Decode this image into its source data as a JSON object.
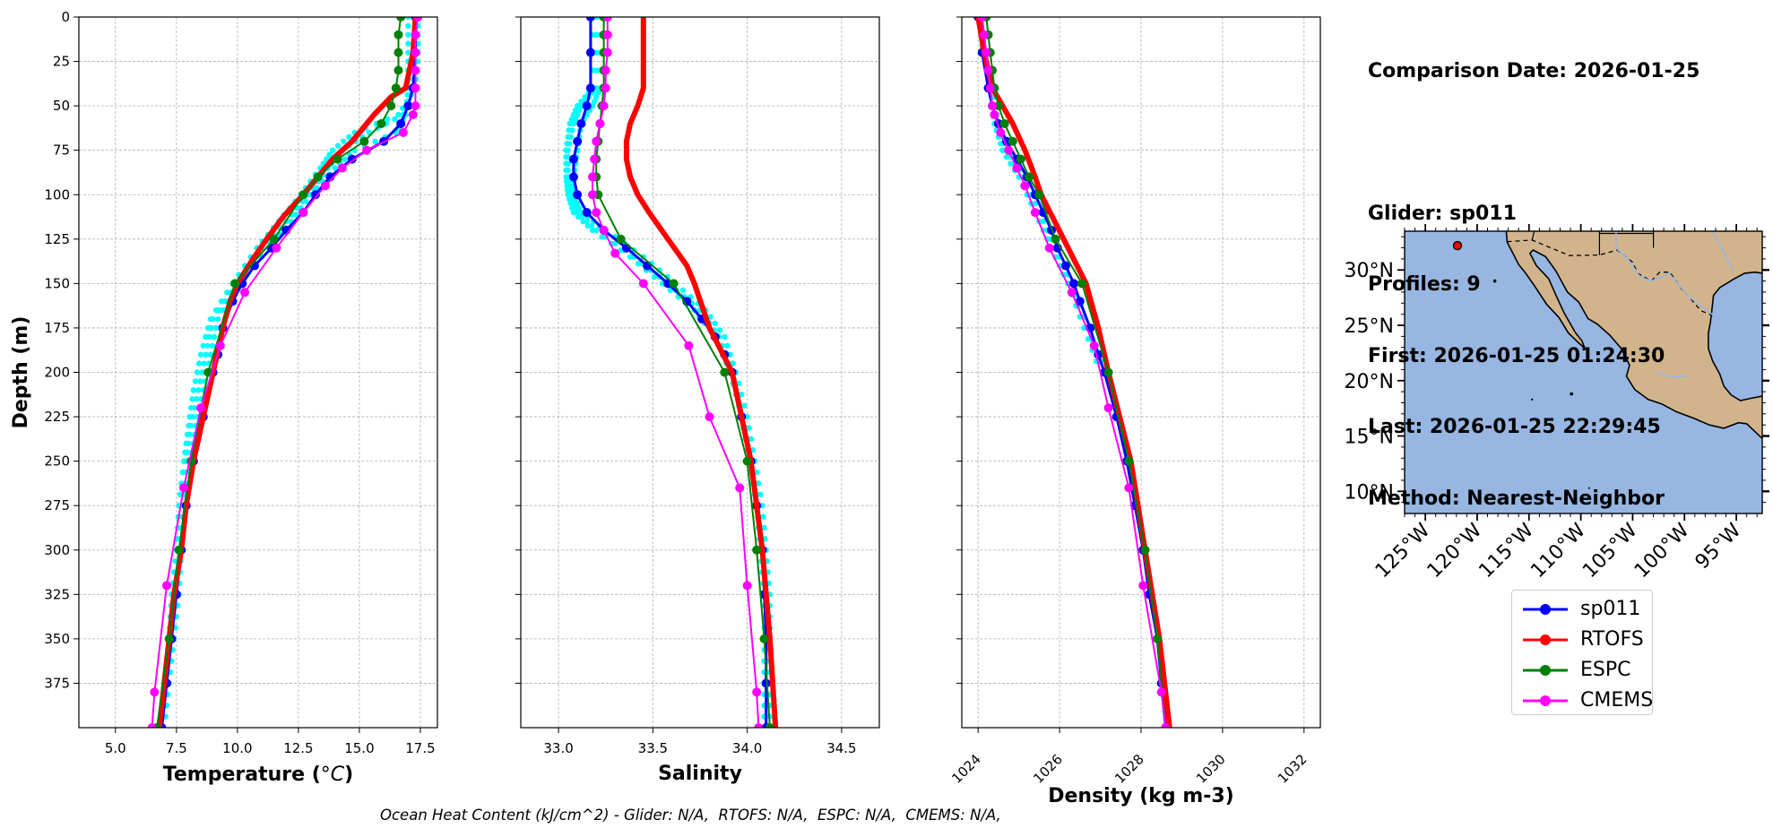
{
  "info": {
    "date_line": "Comparison Date: 2026-01-25",
    "glider_line": "Glider: sp011",
    "profiles_line": "Profiles: 9",
    "first_line": "First: 2026-01-25 01:24:30",
    "last_line": "Last: 2026-01-25 22:29:45",
    "method_line": "Method: Nearest-Neighbor"
  },
  "footer": "Ocean Heat Content (kJ/cm^2) - Glider: N/A,  RTOFS: N/A,  ESPC: N/A,  CMEMS: N/A,",
  "legend": [
    {
      "name": "sp011",
      "color": "#0000ff"
    },
    {
      "name": "RTOFS",
      "color": "#ff0000"
    },
    {
      "name": "ESPC",
      "color": "#008000"
    },
    {
      "name": "CMEMS",
      "color": "#ff00ff"
    }
  ],
  "colors": {
    "glider_profiles": "#00ffff",
    "land": "#d2b48c",
    "ocean": "#97b6e1",
    "rivers": "#97b6e1"
  },
  "chart_data": [
    {
      "type": "line",
      "id": "temperature",
      "xlabel_text": "Temperature (",
      "xlabel_unit": "°C",
      "ylabel": "Depth (m)",
      "xlim": [
        3.5,
        18.2
      ],
      "ylim": [
        400,
        0
      ],
      "xticks": [
        5.0,
        7.5,
        10.0,
        12.5,
        15.0,
        17.5
      ],
      "xtick_labels": [
        "5.0",
        "7.5",
        "10.0",
        "12.5",
        "15.0",
        "17.5"
      ],
      "yticks": [
        0,
        25,
        50,
        75,
        100,
        125,
        150,
        175,
        200,
        225,
        250,
        275,
        300,
        325,
        350,
        375
      ],
      "grid": true,
      "raw_profiles_depth": [
        0,
        20,
        40,
        55,
        65,
        75,
        85,
        100,
        115,
        130,
        150,
        170,
        190,
        210,
        230,
        250,
        275,
        300,
        325,
        350,
        375,
        400
      ],
      "raw_profiles": [
        [
          17.0,
          17.0,
          17.0,
          16.9,
          16.5,
          14.8,
          14.0,
          13.0,
          12.2,
          11.3,
          10.1,
          9.2,
          8.9,
          8.6,
          8.3,
          8.1,
          7.9,
          7.7,
          7.6,
          7.4,
          7.2,
          7.0
        ],
        [
          17.3,
          17.3,
          17.2,
          16.8,
          15.4,
          14.3,
          13.7,
          12.9,
          12.0,
          11.0,
          10.0,
          9.0,
          8.7,
          8.4,
          8.1,
          7.9,
          7.8,
          7.6,
          7.4,
          7.3,
          7.1,
          7.0
        ],
        [
          17.4,
          17.4,
          17.3,
          16.6,
          14.8,
          13.9,
          13.4,
          12.6,
          11.7,
          10.8,
          9.8,
          8.9,
          8.5,
          8.2,
          8.0,
          7.8,
          7.6,
          7.5,
          7.3,
          7.2,
          7.0,
          6.9
        ]
      ],
      "series": [
        {
          "name": "sp011",
          "color": "#0000ff",
          "lw": 3,
          "ms": 5,
          "depth": [
            0,
            20,
            40,
            50,
            60,
            70,
            80,
            90,
            100,
            110,
            120,
            130,
            140,
            150,
            160,
            175,
            190,
            200,
            225,
            250,
            275,
            300,
            325,
            350,
            375,
            400
          ],
          "x": [
            17.3,
            17.3,
            17.2,
            17.0,
            16.7,
            16.0,
            14.7,
            13.8,
            13.2,
            12.7,
            12.0,
            11.4,
            10.7,
            10.2,
            9.8,
            9.4,
            9.2,
            9.0,
            8.6,
            8.2,
            7.9,
            7.7,
            7.5,
            7.3,
            7.1,
            6.9
          ]
        },
        {
          "name": "RTOFS",
          "color": "#ff0000",
          "lw": 6,
          "ms": 0,
          "depth": [
            0,
            20,
            40,
            45,
            55,
            70,
            80,
            90,
            100,
            112,
            125,
            137,
            150,
            160,
            175,
            200,
            225,
            250,
            275,
            300,
            325,
            350,
            375,
            400
          ],
          "x": [
            17.3,
            17.2,
            16.9,
            16.3,
            15.6,
            14.7,
            13.9,
            13.3,
            12.7,
            11.9,
            11.2,
            10.6,
            10.0,
            9.7,
            9.4,
            9.0,
            8.6,
            8.2,
            7.9,
            7.7,
            7.4,
            7.2,
            7.0,
            6.8
          ]
        },
        {
          "name": "ESPC",
          "color": "#008000",
          "lw": 2,
          "ms": 5,
          "depth": [
            0,
            10,
            20,
            30,
            40,
            50,
            60,
            70,
            80,
            90,
            100,
            125,
            150,
            200,
            250,
            300,
            350,
            400
          ],
          "x": [
            16.7,
            16.6,
            16.6,
            16.6,
            16.5,
            16.3,
            15.9,
            15.2,
            14.1,
            13.3,
            12.7,
            11.5,
            9.9,
            8.8,
            8.1,
            7.6,
            7.2,
            6.7
          ]
        },
        {
          "name": "CMEMS",
          "color": "#ff00ff",
          "lw": 2,
          "ms": 5,
          "depth": [
            0,
            10,
            20,
            30,
            40,
            50,
            55,
            65,
            75,
            85,
            95,
            110,
            130,
            155,
            185,
            220,
            265,
            320,
            380,
            400
          ],
          "x": [
            17.4,
            17.3,
            17.3,
            17.3,
            17.3,
            17.3,
            17.2,
            16.8,
            15.3,
            14.3,
            13.6,
            12.7,
            11.6,
            10.3,
            9.3,
            8.5,
            7.8,
            7.1,
            6.6,
            6.5
          ]
        }
      ]
    },
    {
      "type": "line",
      "id": "salinity",
      "xlabel": "Salinity",
      "xlim": [
        32.8,
        34.7
      ],
      "ylim": [
        400,
        0
      ],
      "xticks": [
        33.0,
        33.5,
        34.0,
        34.5
      ],
      "xtick_labels": [
        "33.0",
        "33.5",
        "34.0",
        "34.5"
      ],
      "yticks": [
        0,
        25,
        50,
        75,
        100,
        125,
        150,
        175,
        200,
        225,
        250,
        275,
        300,
        325,
        350,
        375
      ],
      "grid": true,
      "raw_profiles_depth": [
        0,
        40,
        50,
        60,
        75,
        90,
        100,
        110,
        120,
        135,
        150,
        165,
        180,
        200,
        225,
        250,
        275,
        300,
        325,
        350,
        375,
        400
      ],
      "raw_profiles": [
        [
          33.2,
          33.2,
          33.12,
          33.08,
          33.05,
          33.05,
          33.06,
          33.1,
          33.2,
          33.4,
          33.58,
          33.75,
          33.85,
          33.92,
          33.98,
          34.02,
          34.06,
          34.08,
          34.1,
          34.1,
          34.1,
          34.1
        ],
        [
          33.22,
          33.22,
          33.18,
          33.12,
          33.1,
          33.08,
          33.08,
          33.12,
          33.25,
          33.45,
          33.62,
          33.78,
          33.88,
          33.94,
          34.0,
          34.04,
          34.08,
          34.1,
          34.12,
          34.12,
          34.12,
          34.12
        ],
        [
          33.18,
          33.18,
          33.1,
          33.06,
          33.04,
          33.04,
          33.05,
          33.08,
          33.18,
          33.38,
          33.55,
          33.72,
          33.83,
          33.91,
          33.97,
          34.01,
          34.05,
          34.07,
          34.09,
          34.09,
          34.09,
          34.09
        ]
      ],
      "series": [
        {
          "name": "sp011",
          "color": "#0000ff",
          "lw": 3,
          "ms": 5,
          "depth": [
            0,
            20,
            40,
            50,
            60,
            70,
            80,
            90,
            100,
            110,
            120,
            130,
            140,
            150,
            160,
            170,
            180,
            190,
            200,
            225,
            250,
            275,
            300,
            325,
            350,
            375,
            400
          ],
          "x": [
            33.17,
            33.17,
            33.17,
            33.15,
            33.12,
            33.1,
            33.08,
            33.08,
            33.1,
            33.15,
            33.24,
            33.36,
            33.47,
            33.58,
            33.68,
            33.76,
            33.83,
            33.88,
            33.92,
            33.97,
            34.02,
            34.05,
            34.08,
            34.09,
            34.1,
            34.1,
            34.1
          ]
        },
        {
          "name": "RTOFS",
          "color": "#ff0000",
          "lw": 6,
          "ms": 0,
          "depth": [
            0,
            20,
            40,
            50,
            60,
            70,
            80,
            90,
            100,
            110,
            125,
            140,
            150,
            175,
            200,
            250,
            300,
            350,
            400
          ],
          "x": [
            33.45,
            33.45,
            33.45,
            33.42,
            33.38,
            33.36,
            33.36,
            33.38,
            33.42,
            33.48,
            33.58,
            33.68,
            33.72,
            33.8,
            33.92,
            34.02,
            34.08,
            34.12,
            34.15
          ]
        },
        {
          "name": "ESPC",
          "color": "#008000",
          "lw": 2,
          "ms": 5,
          "depth": [
            0,
            10,
            20,
            30,
            40,
            50,
            60,
            70,
            80,
            90,
            100,
            125,
            150,
            200,
            250,
            300,
            350,
            400
          ],
          "x": [
            33.24,
            33.24,
            33.24,
            33.24,
            33.24,
            33.23,
            33.22,
            33.21,
            33.2,
            33.2,
            33.21,
            33.33,
            33.61,
            33.88,
            34.0,
            34.05,
            34.09,
            34.12
          ]
        },
        {
          "name": "CMEMS",
          "color": "#ff00ff",
          "lw": 2,
          "ms": 5,
          "depth": [
            0,
            10,
            20,
            30,
            40,
            50,
            60,
            70,
            80,
            90,
            100,
            110,
            120,
            133,
            150,
            185,
            225,
            265,
            320,
            380,
            400
          ],
          "x": [
            33.26,
            33.26,
            33.26,
            33.25,
            33.25,
            33.24,
            33.22,
            33.2,
            33.19,
            33.18,
            33.18,
            33.2,
            33.24,
            33.3,
            33.45,
            33.69,
            33.8,
            33.96,
            34.0,
            34.05,
            34.06
          ]
        }
      ]
    },
    {
      "type": "line",
      "id": "density",
      "xlabel": "Density (kg m-3)",
      "xlim": [
        1023.6,
        1032.4
      ],
      "ylim": [
        400,
        0
      ],
      "xticks": [
        1024,
        1026,
        1028,
        1030,
        1032
      ],
      "xtick_labels": [
        "1024",
        "1026",
        "1028",
        "1030",
        "1032"
      ],
      "yticks": [
        0,
        25,
        50,
        75,
        100,
        125,
        150,
        175,
        200,
        225,
        250,
        275,
        300,
        325,
        350,
        375
      ],
      "grid": true,
      "raw_profiles_depth": [
        0,
        40,
        60,
        75,
        90,
        110,
        130,
        150,
        175,
        200
      ],
      "raw_profiles": [
        [
          1024.0,
          1024.3,
          1024.4,
          1024.6,
          1025.0,
          1025.4,
          1025.8,
          1026.2,
          1026.6,
          1027.0
        ],
        [
          1024.1,
          1024.35,
          1024.5,
          1024.7,
          1025.1,
          1025.5,
          1025.9,
          1026.3,
          1026.7,
          1027.1
        ]
      ],
      "series": [
        {
          "name": "sp011",
          "color": "#0000ff",
          "lw": 3,
          "ms": 5,
          "depth": [
            0,
            20,
            40,
            50,
            60,
            70,
            80,
            90,
            100,
            110,
            120,
            130,
            140,
            150,
            160,
            175,
            190,
            200,
            225,
            250,
            275,
            300,
            325,
            350,
            375,
            400
          ],
          "x": [
            1024.0,
            1024.1,
            1024.25,
            1024.35,
            1024.5,
            1024.7,
            1024.95,
            1025.2,
            1025.4,
            1025.6,
            1025.8,
            1025.95,
            1026.15,
            1026.35,
            1026.5,
            1026.75,
            1026.95,
            1027.1,
            1027.4,
            1027.65,
            1027.85,
            1028.05,
            1028.2,
            1028.4,
            1028.5,
            1028.6
          ]
        },
        {
          "name": "RTOFS",
          "color": "#ff0000",
          "lw": 6,
          "ms": 0,
          "depth": [
            0,
            20,
            40,
            50,
            60,
            75,
            90,
            100,
            125,
            150,
            175,
            200,
            250,
            300,
            350,
            400
          ],
          "x": [
            1024.0,
            1024.15,
            1024.35,
            1024.6,
            1024.85,
            1025.15,
            1025.4,
            1025.55,
            1026.1,
            1026.65,
            1026.95,
            1027.2,
            1027.75,
            1028.1,
            1028.45,
            1028.7
          ]
        },
        {
          "name": "ESPC",
          "color": "#008000",
          "lw": 2,
          "ms": 5,
          "depth": [
            0,
            10,
            20,
            30,
            40,
            50,
            60,
            70,
            80,
            90,
            100,
            125,
            150,
            200,
            250,
            300,
            350,
            400
          ],
          "x": [
            1024.2,
            1024.25,
            1024.3,
            1024.35,
            1024.4,
            1024.5,
            1024.65,
            1024.85,
            1025.05,
            1025.25,
            1025.5,
            1025.9,
            1026.55,
            1027.2,
            1027.7,
            1028.1,
            1028.4,
            1028.6
          ]
        },
        {
          "name": "CMEMS",
          "color": "#ff00ff",
          "lw": 2,
          "ms": 5,
          "depth": [
            0,
            10,
            20,
            30,
            40,
            50,
            55,
            65,
            75,
            85,
            95,
            110,
            130,
            155,
            185,
            220,
            265,
            320,
            380,
            400
          ],
          "x": [
            1024.1,
            1024.15,
            1024.2,
            1024.25,
            1024.3,
            1024.35,
            1024.4,
            1024.55,
            1024.75,
            1024.95,
            1025.15,
            1025.4,
            1025.75,
            1026.3,
            1026.85,
            1027.2,
            1027.7,
            1028.05,
            1028.5,
            1028.6
          ]
        }
      ]
    },
    {
      "type": "map",
      "id": "location_map",
      "lon_range": [
        -127,
        -92.5
      ],
      "lat_range": [
        8,
        33.5
      ],
      "lat_ticks": [
        30,
        25,
        20,
        15,
        10
      ],
      "lat_labels": [
        "30°N",
        "25°N",
        "20°N",
        "15°N",
        "10°N"
      ],
      "lon_ticks": [
        -125,
        -120,
        -115,
        -110,
        -105,
        -100,
        -95
      ],
      "lon_labels": [
        "125°W",
        "120°W",
        "115°W",
        "110°W",
        "105°W",
        "100°W",
        "95°W"
      ],
      "glider_position": {
        "lon": -121.9,
        "lat": 32.2
      }
    }
  ]
}
